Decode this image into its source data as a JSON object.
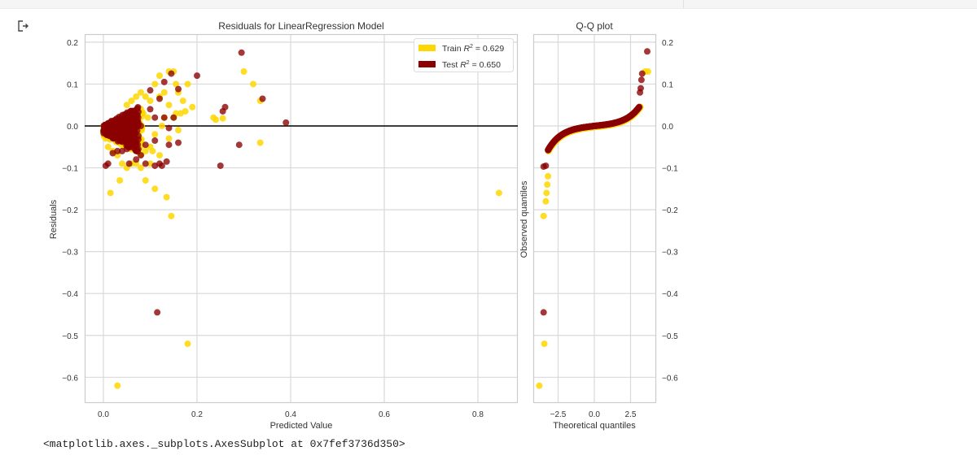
{
  "notebook": {
    "output_icon": "output-arrow-icon",
    "output_repr": "<matplotlib.axes._subplots.AxesSubplot at 0x7fef3736d350>"
  },
  "colors": {
    "train": "#FFD700",
    "test": "#8B0000",
    "test_alpha_color": "#8b1a1a",
    "grid": "#d9d9d9",
    "frame": "#cccccc",
    "zero_line": "#000000",
    "text": "#333333"
  },
  "chart_data": [
    {
      "type": "scatter",
      "title": "Residuals for LinearRegression Model",
      "xlabel": "Predicted Value",
      "ylabel": "Residuals",
      "xlim": [
        -0.04,
        0.885
      ],
      "ylim": [
        -0.66,
        0.22
      ],
      "xticks": [
        "0.0",
        "0.2",
        "0.4",
        "0.6",
        "0.8"
      ],
      "yticks": [
        "0.2",
        "0.1",
        "0.0",
        "−0.1",
        "−0.2",
        "−0.3",
        "−0.4",
        "−0.5",
        "−0.6"
      ],
      "grid": true,
      "hline_y": 0.0,
      "legend": {
        "position": "upper right",
        "entries": [
          {
            "label": "Train R² = 0.629",
            "prefix": "Train ",
            "r": "R",
            "sup": "2",
            "value": " = 0.629",
            "color": "#FFD700"
          },
          {
            "label": "Test R² = 0.650",
            "prefix": "Test ",
            "r": "R",
            "sup": "2",
            "value": " = 0.650",
            "color": "#8B0000"
          }
        ]
      },
      "series": [
        {
          "name": "Train",
          "color": "#FFD700",
          "points": [
            [
              0.005,
              -0.03
            ],
            [
              0.01,
              -0.05
            ],
            [
              0.02,
              -0.06
            ],
            [
              0.03,
              -0.07
            ],
            [
              0.04,
              -0.09
            ],
            [
              0.05,
              -0.1
            ],
            [
              0.06,
              -0.09
            ],
            [
              0.07,
              -0.09
            ],
            [
              0.08,
              -0.1
            ],
            [
              0.1,
              -0.09
            ],
            [
              0.015,
              -0.16
            ],
            [
              0.035,
              -0.13
            ],
            [
              0.09,
              -0.13
            ],
            [
              0.11,
              -0.15
            ],
            [
              0.135,
              -0.17
            ],
            [
              0.145,
              -0.215
            ],
            [
              0.18,
              -0.52
            ],
            [
              0.03,
              -0.62
            ],
            [
              0.12,
              0.12
            ],
            [
              0.14,
              0.13
            ],
            [
              0.15,
              0.13
            ],
            [
              0.11,
              0.1
            ],
            [
              0.155,
              0.1
            ],
            [
              0.18,
              0.1
            ],
            [
              0.16,
              0.08
            ],
            [
              0.13,
              0.08
            ],
            [
              0.17,
              0.06
            ],
            [
              0.12,
              0.07
            ],
            [
              0.14,
              0.05
            ],
            [
              0.19,
              0.045
            ],
            [
              0.1,
              0.06
            ],
            [
              0.09,
              0.07
            ],
            [
              0.08,
              0.08
            ],
            [
              0.155,
              0.03
            ],
            [
              0.165,
              0.03
            ],
            [
              0.175,
              0.035
            ],
            [
              0.15,
              0.02
            ],
            [
              0.13,
              0.02
            ],
            [
              0.125,
              0.0
            ],
            [
              0.16,
              -0.01
            ],
            [
              0.14,
              -0.03
            ],
            [
              0.11,
              -0.02
            ],
            [
              0.1,
              -0.05
            ],
            [
              0.105,
              -0.06
            ],
            [
              0.12,
              -0.07
            ],
            [
              0.09,
              -0.06
            ],
            [
              0.08,
              -0.04
            ],
            [
              0.07,
              -0.05
            ],
            [
              0.235,
              0.02
            ],
            [
              0.24,
              0.015
            ],
            [
              0.255,
              0.018
            ],
            [
              0.3,
              0.13
            ],
            [
              0.32,
              0.1
            ],
            [
              0.335,
              0.06
            ],
            [
              0.335,
              -0.04
            ],
            [
              0.845,
              -0.16
            ],
            [
              0.05,
              0.05
            ],
            [
              0.06,
              0.06
            ],
            [
              0.07,
              0.07
            ],
            [
              0.085,
              0.03
            ],
            [
              0.095,
              0.02
            ],
            [
              0.06,
              -0.03
            ],
            [
              0.045,
              -0.04
            ]
          ]
        },
        {
          "name": "Test",
          "color": "#8B0000",
          "points": [
            [
              0.005,
              -0.095
            ],
            [
              0.01,
              -0.09
            ],
            [
              0.02,
              -0.065
            ],
            [
              0.03,
              -0.06
            ],
            [
              0.04,
              -0.06
            ],
            [
              0.05,
              -0.055
            ],
            [
              0.07,
              -0.08
            ],
            [
              0.08,
              -0.07
            ],
            [
              0.09,
              -0.09
            ],
            [
              0.11,
              -0.095
            ],
            [
              0.12,
              -0.09
            ],
            [
              0.125,
              -0.095
            ],
            [
              0.135,
              -0.085
            ],
            [
              0.055,
              -0.09
            ],
            [
              0.07,
              -0.04
            ],
            [
              0.09,
              -0.045
            ],
            [
              0.11,
              -0.035
            ],
            [
              0.14,
              -0.045
            ],
            [
              0.16,
              -0.04
            ],
            [
              0.1,
              0.085
            ],
            [
              0.12,
              0.065
            ],
            [
              0.13,
              0.105
            ],
            [
              0.145,
              0.125
            ],
            [
              0.2,
              0.12
            ],
            [
              0.16,
              0.088
            ],
            [
              0.1,
              0.04
            ],
            [
              0.11,
              0.02
            ],
            [
              0.13,
              0.02
            ],
            [
              0.15,
              0.02
            ],
            [
              0.14,
              -0.005
            ],
            [
              0.08,
              0.0
            ],
            [
              0.255,
              0.035
            ],
            [
              0.26,
              0.045
            ],
            [
              0.25,
              -0.095
            ],
            [
              0.295,
              0.175
            ],
            [
              0.29,
              -0.045
            ],
            [
              0.34,
              0.065
            ],
            [
              0.39,
              0.008
            ],
            [
              0.115,
              -0.445
            ]
          ]
        }
      ],
      "dense_cluster": {
        "description": "dense overlapping cluster near x 0.0-0.08, y -0.06 to 0.06",
        "x_range": [
          0.0,
          0.08
        ],
        "y_range": [
          -0.06,
          0.06
        ]
      }
    },
    {
      "type": "scatter",
      "title": "Q-Q plot",
      "xlabel": "Theoretical quantiles",
      "ylabel": "Observed quantiles",
      "xticks": [
        "−2.5",
        "0.0",
        "2.5"
      ],
      "yticks_right": [
        "0.2",
        "0.1",
        "0.0",
        "−0.1",
        "−0.2",
        "−0.3",
        "−0.4",
        "−0.5",
        "−0.6"
      ],
      "xlim": [
        -4.2,
        4.2
      ],
      "ylim": [
        -0.66,
        0.22
      ],
      "grid": true,
      "series": [
        {
          "name": "Train",
          "color": "#FFD700",
          "outliers": [
            [
              -3.5,
              -0.215
            ],
            [
              -3.45,
              -0.52
            ],
            [
              -3.8,
              -0.62
            ],
            [
              -3.35,
              -0.18
            ],
            [
              -3.3,
              -0.16
            ],
            [
              -3.25,
              -0.14
            ],
            [
              -3.2,
              -0.12
            ],
            [
              3.7,
              0.13
            ],
            [
              3.5,
              0.13
            ]
          ]
        },
        {
          "name": "Test",
          "color": "#8B0000",
          "outliers": [
            [
              -3.5,
              -0.445
            ],
            [
              -3.5,
              -0.097
            ],
            [
              -3.35,
              -0.095
            ],
            [
              3.65,
              0.178
            ],
            [
              3.3,
              0.125
            ],
            [
              3.25,
              0.11
            ],
            [
              3.2,
              0.09
            ],
            [
              3.15,
              0.08
            ]
          ]
        }
      ],
      "curve_note": "S-shaped quantile curve from (-3.2,-0.09) through (0,0) to (3.1,0.07)"
    }
  ]
}
